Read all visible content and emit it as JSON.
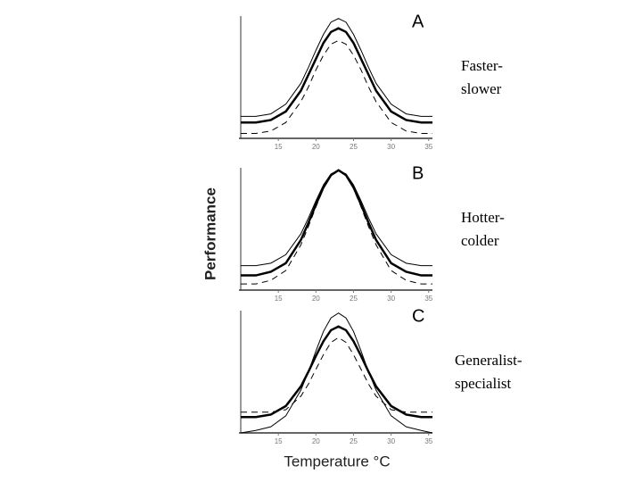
{
  "ylabel": "Performance",
  "xlabel": "Temperature °C",
  "chart_data": [
    {
      "type": "line",
      "title": "A",
      "annotation": [
        "Faster-",
        "slower"
      ],
      "x": [
        10,
        12,
        14,
        16,
        18,
        19,
        20,
        21,
        22,
        23,
        24,
        25,
        26,
        27,
        28,
        30,
        32,
        34,
        35.5
      ],
      "xlim": [
        10,
        35.5
      ],
      "xticks": [
        15,
        20,
        25,
        30,
        35
      ],
      "ylim": [
        0,
        1
      ],
      "series": [
        {
          "color": "#000",
          "width": 1,
          "dashed": false,
          "values": [
            0.18,
            0.18,
            0.2,
            0.28,
            0.45,
            0.58,
            0.72,
            0.85,
            0.95,
            0.98,
            0.95,
            0.85,
            0.72,
            0.58,
            0.45,
            0.28,
            0.2,
            0.18,
            0.18
          ]
        },
        {
          "color": "#000",
          "width": 2.5,
          "dashed": false,
          "values": [
            0.13,
            0.13,
            0.15,
            0.22,
            0.39,
            0.52,
            0.65,
            0.78,
            0.87,
            0.9,
            0.87,
            0.78,
            0.65,
            0.52,
            0.39,
            0.22,
            0.15,
            0.13,
            0.13
          ]
        },
        {
          "color": "#000",
          "width": 1,
          "dashed": true,
          "values": [
            0.04,
            0.04,
            0.06,
            0.13,
            0.3,
            0.42,
            0.56,
            0.68,
            0.77,
            0.8,
            0.77,
            0.68,
            0.56,
            0.42,
            0.3,
            0.13,
            0.06,
            0.04,
            0.04
          ]
        }
      ]
    },
    {
      "type": "line",
      "title": "B",
      "annotation": [
        "Hotter-",
        "colder"
      ],
      "x": [
        10,
        12,
        14,
        16,
        18,
        19,
        20,
        21,
        22,
        23,
        24,
        25,
        26,
        27,
        28,
        30,
        32,
        34,
        35.5
      ],
      "xlim": [
        10,
        35.5
      ],
      "xticks": [
        15,
        20,
        25,
        30,
        35
      ],
      "ylim": [
        0,
        1
      ],
      "series": [
        {
          "color": "#000",
          "width": 1,
          "dashed": false,
          "values": [
            0.2,
            0.2,
            0.22,
            0.29,
            0.46,
            0.59,
            0.73,
            0.86,
            0.95,
            0.98,
            0.95,
            0.86,
            0.73,
            0.59,
            0.46,
            0.29,
            0.22,
            0.2,
            0.2
          ]
        },
        {
          "color": "#000",
          "width": 2.5,
          "dashed": false,
          "values": [
            0.12,
            0.12,
            0.15,
            0.22,
            0.41,
            0.55,
            0.7,
            0.84,
            0.94,
            0.98,
            0.94,
            0.84,
            0.7,
            0.55,
            0.41,
            0.22,
            0.15,
            0.12,
            0.12
          ]
        },
        {
          "color": "#000",
          "width": 1,
          "dashed": true,
          "values": [
            0.05,
            0.05,
            0.08,
            0.16,
            0.37,
            0.52,
            0.68,
            0.83,
            0.94,
            0.98,
            0.94,
            0.83,
            0.68,
            0.52,
            0.37,
            0.16,
            0.08,
            0.05,
            0.05
          ]
        }
      ]
    },
    {
      "type": "line",
      "title": "C",
      "annotation": [
        "Generalist-",
        "specialist"
      ],
      "x": [
        10,
        12,
        14,
        16,
        18,
        19,
        20,
        21,
        22,
        23,
        24,
        25,
        26,
        27,
        28,
        30,
        32,
        34,
        35.5
      ],
      "xlim": [
        10,
        35.5
      ],
      "xticks": [
        15,
        20,
        25,
        30,
        35
      ],
      "ylim": [
        0,
        1
      ],
      "series": [
        {
          "color": "#000",
          "width": 1,
          "dashed": false,
          "values": [
            0.0,
            0.02,
            0.05,
            0.14,
            0.35,
            0.5,
            0.67,
            0.83,
            0.94,
            0.98,
            0.94,
            0.83,
            0.67,
            0.5,
            0.35,
            0.14,
            0.05,
            0.02,
            0.0
          ]
        },
        {
          "color": "#000",
          "width": 2.5,
          "dashed": false,
          "values": [
            0.13,
            0.13,
            0.15,
            0.22,
            0.38,
            0.5,
            0.63,
            0.75,
            0.84,
            0.87,
            0.84,
            0.75,
            0.63,
            0.5,
            0.38,
            0.22,
            0.15,
            0.13,
            0.13
          ]
        },
        {
          "color": "#000",
          "width": 1,
          "dashed": true,
          "values": [
            0.17,
            0.17,
            0.17,
            0.19,
            0.3,
            0.4,
            0.52,
            0.64,
            0.74,
            0.78,
            0.74,
            0.64,
            0.52,
            0.4,
            0.3,
            0.19,
            0.17,
            0.17,
            0.17
          ]
        }
      ]
    }
  ]
}
